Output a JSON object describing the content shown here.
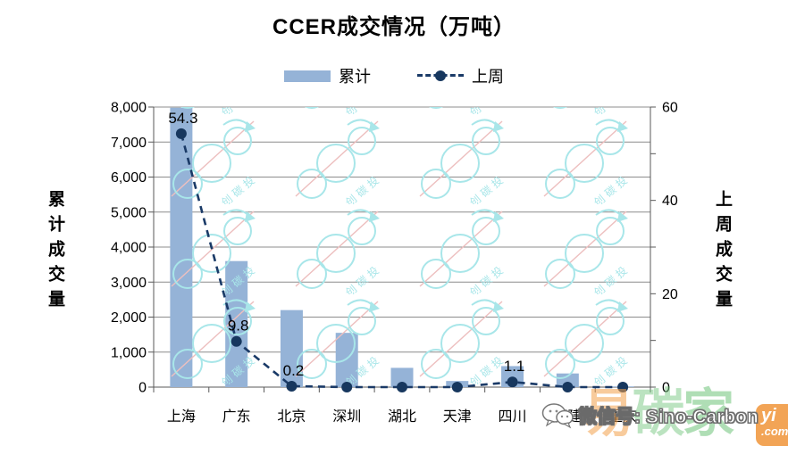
{
  "title": "CCER成交情况（万吨）",
  "legend": {
    "cumulative_label": "累计",
    "last_week_label": "上周"
  },
  "left_axis": {
    "title": "累计成交量",
    "tick_labels": [
      "0",
      "1,000",
      "2,000",
      "3,000",
      "4,000",
      "5,000",
      "6,000",
      "7,000",
      "8,000"
    ],
    "min": 0,
    "max": 8000,
    "tick_step": 1000
  },
  "right_axis": {
    "title": "上周成交量",
    "tick_labels": [
      "0",
      "20",
      "40",
      "60"
    ],
    "label_step": 20,
    "minor_tick_step": 10,
    "min": 0,
    "max": 60
  },
  "chart_data": {
    "type": "bar",
    "subtype": "bar+line combo, secondary axis",
    "title": "CCER成交情况（万吨）",
    "categories": [
      "上海",
      "广东",
      "北京",
      "深圳",
      "湖北",
      "天津",
      "四川",
      "福建",
      "重庆"
    ],
    "series": [
      {
        "name": "累计",
        "type": "bar",
        "axis": "left",
        "values": [
          7980,
          3600,
          2200,
          1550,
          550,
          175,
          600,
          390,
          20
        ]
      },
      {
        "name": "上周",
        "type": "line",
        "style": "dashed-with-markers",
        "axis": "right",
        "values": [
          54.3,
          9.8,
          0.2,
          0,
          0,
          0,
          1.1,
          0,
          0
        ],
        "point_labels": [
          {
            "category_index": 0,
            "text": "54.3"
          },
          {
            "category_index": 1,
            "text": "9.8"
          },
          {
            "category_index": 2,
            "text": "0.2"
          },
          {
            "category_index": 6,
            "text": "1.1"
          }
        ]
      }
    ],
    "left_ylim": [
      0,
      8000
    ],
    "right_ylim": [
      0,
      60
    ],
    "grid": true,
    "legend_position": "top"
  },
  "colors": {
    "bar_fill": "#95B3D7",
    "line_stroke": "#1A3A67",
    "marker_fill": "#17375E",
    "gridline": "#8C8C8C",
    "axis_line": "#595959",
    "watermark_cyan": "#A8E6E9",
    "watermark_pink": "#EDBFBF",
    "brand_orange": "#F09438",
    "brand_green": "#6EC378"
  },
  "watermark": {
    "pattern_text": "中创碳投",
    "wechat_text": "微信号: Sino-Carbon",
    "brand_chars": [
      "易",
      "碳",
      "家"
    ],
    "badge_line1": "yi",
    "badge_line2": ".com"
  }
}
